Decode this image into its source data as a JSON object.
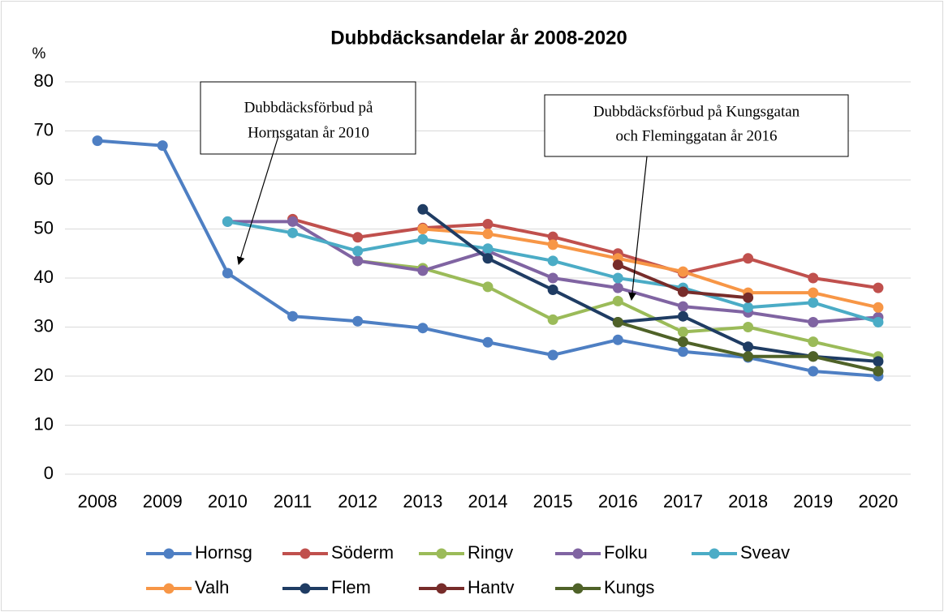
{
  "chart_data": {
    "type": "line",
    "title": "Dubbdäcksandelar år 2008-2020",
    "y_label": "%",
    "categories": [
      "2008",
      "2009",
      "2010",
      "2011",
      "2012",
      "2013",
      "2014",
      "2015",
      "2016",
      "2017",
      "2018",
      "2019",
      "2020"
    ],
    "ylim": [
      0,
      80
    ],
    "yticks": [
      0,
      10,
      20,
      30,
      40,
      50,
      60,
      70,
      80
    ],
    "grid": true,
    "legend": "bottom",
    "series": [
      {
        "name": "Hornsg",
        "color": "#4e7fc3",
        "values": [
          68,
          67,
          41,
          32.2,
          31.2,
          29.8,
          26.9,
          24.3,
          27.4,
          25,
          23.8,
          21,
          20
        ]
      },
      {
        "name": "Söderm",
        "color": "#c0504d",
        "values": [
          null,
          null,
          null,
          52,
          48.3,
          50.2,
          51,
          48.4,
          45,
          41,
          44,
          40,
          38
        ]
      },
      {
        "name": "Ringv",
        "color": "#9bbb59",
        "values": [
          null,
          null,
          null,
          null,
          43.5,
          42,
          38.2,
          31.5,
          35.3,
          29,
          30,
          27,
          24
        ]
      },
      {
        "name": "Folku",
        "color": "#8064a2",
        "values": [
          null,
          null,
          51.5,
          51.5,
          43.5,
          41.5,
          45.5,
          40,
          38,
          34.2,
          33,
          31,
          32
        ]
      },
      {
        "name": "Sveav",
        "color": "#4bacc6",
        "values": [
          null,
          null,
          51.5,
          49.2,
          45.5,
          47.9,
          46,
          43.5,
          40,
          38,
          34,
          35,
          31
        ]
      },
      {
        "name": "Valh",
        "color": "#f79646",
        "values": [
          null,
          null,
          null,
          null,
          null,
          50,
          49,
          46.8,
          44,
          41.3,
          37,
          37,
          34
        ]
      },
      {
        "name": "Flem",
        "color": "#1f3c63",
        "values": [
          null,
          null,
          null,
          null,
          null,
          54,
          44,
          37.6,
          31,
          32.2,
          26,
          24,
          23
        ]
      },
      {
        "name": "Hantv",
        "color": "#772c2a",
        "values": [
          null,
          null,
          null,
          null,
          null,
          null,
          null,
          null,
          42.7,
          37.2,
          36,
          null,
          null
        ]
      },
      {
        "name": "Kungs",
        "color": "#4f6228",
        "values": [
          null,
          null,
          null,
          null,
          null,
          null,
          null,
          null,
          31,
          27,
          24,
          24,
          21
        ]
      }
    ],
    "annotations": [
      {
        "text": [
          "Dubbdäcksförbud på",
          "Hornsgatan år 2010"
        ]
      },
      {
        "text": [
          "Dubbdäcksförbud på Kungsgatan",
          "och Fleminggatan år 2016"
        ]
      }
    ]
  }
}
